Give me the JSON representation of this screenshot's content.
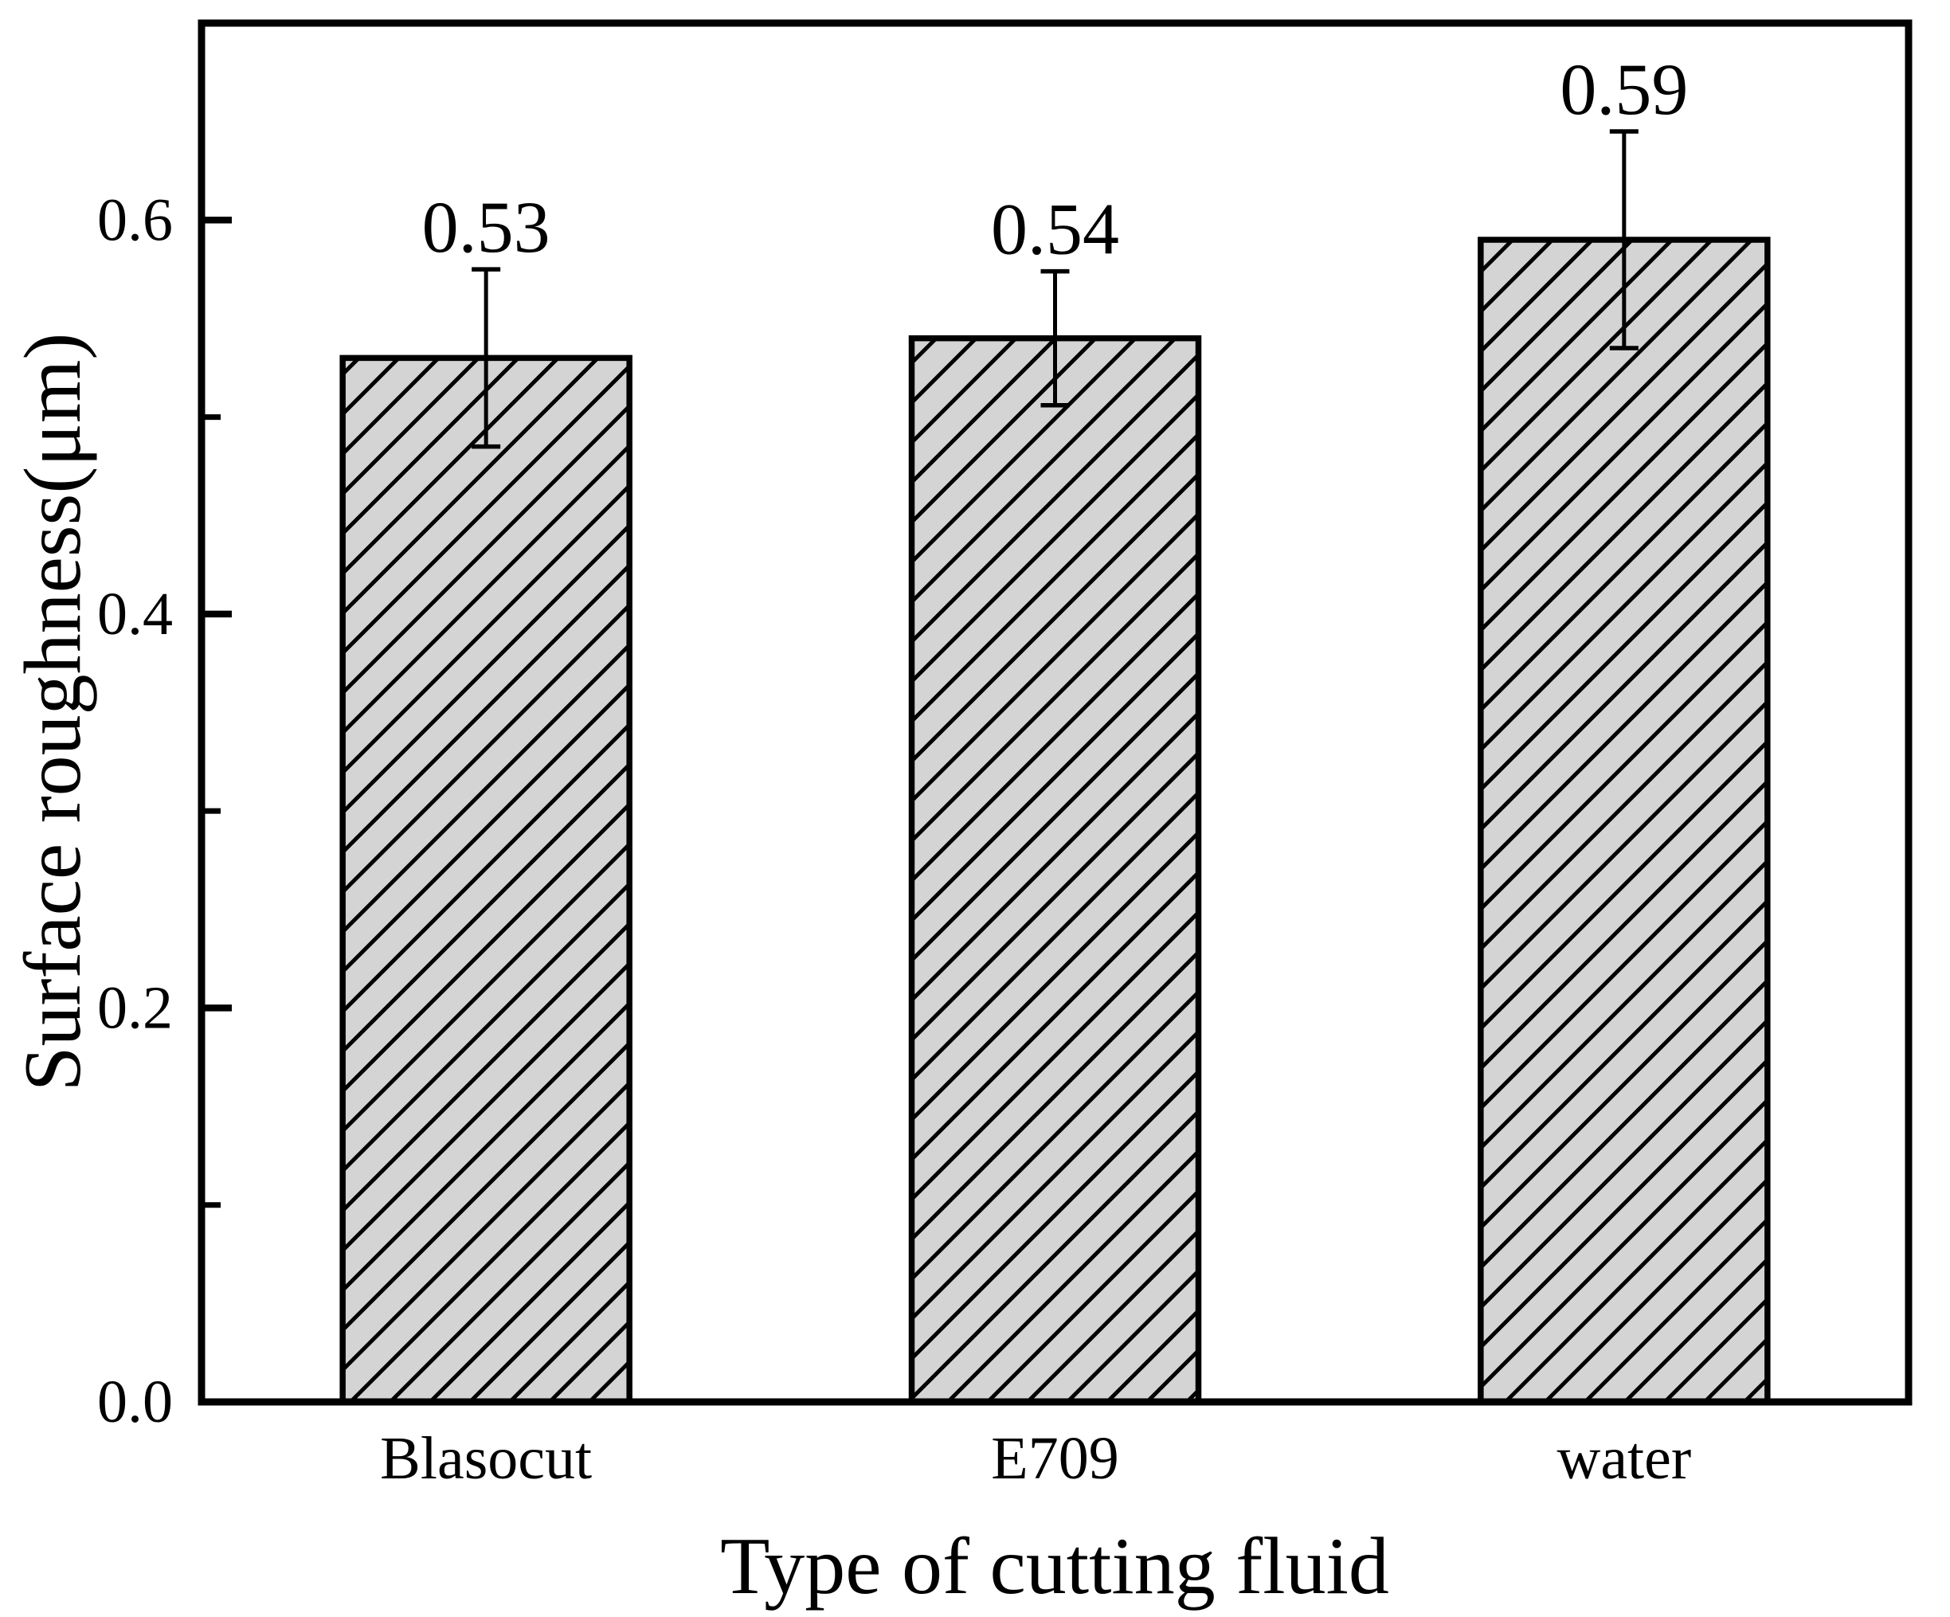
{
  "chart_data": {
    "type": "bar",
    "title": "",
    "xlabel": "Type of cutting fluid",
    "ylabel": "Surface roughness(μm)",
    "categories": [
      "Blasocut",
      "E709",
      "water"
    ],
    "values": [
      0.53,
      0.54,
      0.59
    ],
    "errors": [
      0.045,
      0.034,
      0.055
    ],
    "value_labels": [
      "0.53",
      "0.54",
      "0.59"
    ],
    "ylim": [
      0.0,
      0.7
    ],
    "ytick_values": [
      0.0,
      0.2,
      0.4,
      0.6
    ],
    "ytick_labels": [
      "0.0",
      "0.2",
      "0.4",
      "0.6"
    ],
    "ytick_minor_values": [
      0.1,
      0.3,
      0.5
    ],
    "grid": false,
    "legend_position": "none",
    "bar_fill_color": "#d4d4d4",
    "bar_hatch": "forward-diagonal-lines",
    "bar_edge_color": "#000000",
    "error_bar_color": "#000000",
    "frame_color": "#000000",
    "text_color": "#000000",
    "background_color": "#ffffff"
  }
}
